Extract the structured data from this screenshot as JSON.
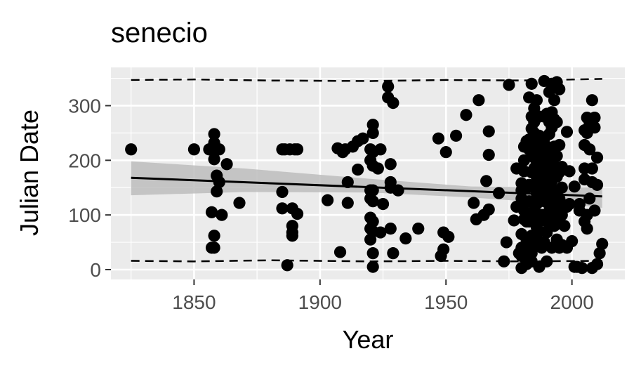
{
  "chart_data": {
    "type": "scatter",
    "title": "senecio",
    "xlabel": "Year",
    "ylabel": "Julian Date",
    "xlim": [
      1817,
      2021
    ],
    "ylim": [
      -18,
      370
    ],
    "x_ticks": [
      1850,
      1900,
      1950,
      2000
    ],
    "y_ticks": [
      0,
      100,
      200,
      300
    ],
    "x_tick_labels": [
      "1850",
      "1900",
      "1950",
      "2000"
    ],
    "y_tick_labels": [
      "0",
      "100",
      "200",
      "300"
    ],
    "grid": true,
    "legend": "none",
    "colors": {
      "panel": "#ebebeb",
      "grid": "#ffffff",
      "points": "#000000",
      "trend": "#000000",
      "band": "#bdbdbd"
    },
    "points": [
      [
        1825,
        220
      ],
      [
        1850,
        220
      ],
      [
        1856,
        220
      ],
      [
        1857,
        105
      ],
      [
        1857,
        40
      ],
      [
        1858,
        220
      ],
      [
        1858,
        248
      ],
      [
        1858,
        232
      ],
      [
        1858,
        202
      ],
      [
        1858,
        62
      ],
      [
        1858,
        40
      ],
      [
        1859,
        172
      ],
      [
        1859,
        143
      ],
      [
        1860,
        220
      ],
      [
        1860,
        160
      ],
      [
        1861,
        100
      ],
      [
        1863,
        193
      ],
      [
        1868,
        122
      ],
      [
        1885,
        220
      ],
      [
        1885,
        142
      ],
      [
        1885,
        112
      ],
      [
        1886,
        220
      ],
      [
        1887,
        8
      ],
      [
        1888,
        220
      ],
      [
        1889,
        112
      ],
      [
        1889,
        80
      ],
      [
        1889,
        68
      ],
      [
        1889,
        62
      ],
      [
        1890,
        220
      ],
      [
        1891,
        220
      ],
      [
        1891,
        102
      ],
      [
        1903,
        127
      ],
      [
        1907,
        222
      ],
      [
        1908,
        32
      ],
      [
        1909,
        215
      ],
      [
        1910,
        220
      ],
      [
        1911,
        160
      ],
      [
        1911,
        122
      ],
      [
        1913,
        225
      ],
      [
        1915,
        235
      ],
      [
        1915,
        183
      ],
      [
        1917,
        240
      ],
      [
        1920,
        220
      ],
      [
        1920,
        200
      ],
      [
        1920,
        145
      ],
      [
        1920,
        130
      ],
      [
        1920,
        95
      ],
      [
        1920,
        75
      ],
      [
        1920,
        55
      ],
      [
        1921,
        265
      ],
      [
        1921,
        250
      ],
      [
        1921,
        215
      ],
      [
        1921,
        190
      ],
      [
        1921,
        145
      ],
      [
        1921,
        125
      ],
      [
        1921,
        88
      ],
      [
        1921,
        70
      ],
      [
        1921,
        30
      ],
      [
        1921,
        5
      ],
      [
        1923,
        185
      ],
      [
        1924,
        220
      ],
      [
        1924,
        68
      ],
      [
        1925,
        120
      ],
      [
        1927,
        335
      ],
      [
        1927,
        315
      ],
      [
        1928,
        193
      ],
      [
        1928,
        160
      ],
      [
        1928,
        150
      ],
      [
        1928,
        75
      ],
      [
        1929,
        305
      ],
      [
        1929,
        30
      ],
      [
        1931,
        145
      ],
      [
        1934,
        57
      ],
      [
        1939,
        75
      ],
      [
        1947,
        240
      ],
      [
        1948,
        25
      ],
      [
        1949,
        68
      ],
      [
        1949,
        37
      ],
      [
        1950,
        215
      ],
      [
        1951,
        60
      ],
      [
        1954,
        245
      ],
      [
        1958,
        283
      ],
      [
        1961,
        122
      ],
      [
        1962,
        92
      ],
      [
        1963,
        310
      ],
      [
        1965,
        100
      ],
      [
        1966,
        162
      ],
      [
        1967,
        253
      ],
      [
        1967,
        210
      ],
      [
        1967,
        110
      ],
      [
        1971,
        140
      ],
      [
        1973,
        15
      ],
      [
        1974,
        50
      ],
      [
        1975,
        338
      ],
      [
        1977,
        90
      ],
      [
        1978,
        185
      ],
      [
        1978,
        115
      ],
      [
        1979,
        30
      ],
      [
        1980,
        158
      ],
      [
        1980,
        145
      ],
      [
        1980,
        130
      ],
      [
        1980,
        120
      ],
      [
        1980,
        65
      ],
      [
        1980,
        40
      ],
      [
        1980,
        25
      ],
      [
        1980,
        3
      ],
      [
        1981,
        225
      ],
      [
        1981,
        200
      ],
      [
        1981,
        180
      ],
      [
        1981,
        108
      ],
      [
        1981,
        92
      ],
      [
        1981,
        42
      ],
      [
        1982,
        235
      ],
      [
        1982,
        150
      ],
      [
        1982,
        88
      ],
      [
        1982,
        55
      ],
      [
        1982,
        10
      ],
      [
        1983,
        315
      ],
      [
        1983,
        238
      ],
      [
        1983,
        220
      ],
      [
        1983,
        155
      ],
      [
        1983,
        125
      ],
      [
        1983,
        88
      ],
      [
        1983,
        30
      ],
      [
        1984,
        340
      ],
      [
        1984,
        280
      ],
      [
        1984,
        258
      ],
      [
        1984,
        230
      ],
      [
        1984,
        215
      ],
      [
        1984,
        178
      ],
      [
        1984,
        100
      ],
      [
        1984,
        62
      ],
      [
        1984,
        30
      ],
      [
        1984,
        15
      ],
      [
        1985,
        295
      ],
      [
        1985,
        270
      ],
      [
        1985,
        250
      ],
      [
        1985,
        205
      ],
      [
        1985,
        185
      ],
      [
        1985,
        150
      ],
      [
        1985,
        108
      ],
      [
        1985,
        45
      ],
      [
        1986,
        310
      ],
      [
        1986,
        230
      ],
      [
        1986,
        215
      ],
      [
        1986,
        195
      ],
      [
        1986,
        170
      ],
      [
        1986,
        140
      ],
      [
        1986,
        120
      ],
      [
        1986,
        78
      ],
      [
        1986,
        55
      ],
      [
        1987,
        280
      ],
      [
        1987,
        245
      ],
      [
        1987,
        210
      ],
      [
        1987,
        160
      ],
      [
        1987,
        95
      ],
      [
        1987,
        70
      ],
      [
        1987,
        5
      ],
      [
        1988,
        230
      ],
      [
        1988,
        175
      ],
      [
        1988,
        140
      ],
      [
        1988,
        100
      ],
      [
        1988,
        40
      ],
      [
        1989,
        345
      ],
      [
        1989,
        280
      ],
      [
        1989,
        240
      ],
      [
        1989,
        190
      ],
      [
        1989,
        160
      ],
      [
        1989,
        125
      ],
      [
        1989,
        90
      ],
      [
        1989,
        50
      ],
      [
        1990,
        285
      ],
      [
        1990,
        225
      ],
      [
        1990,
        200
      ],
      [
        1990,
        170
      ],
      [
        1990,
        135
      ],
      [
        1990,
        102
      ],
      [
        1990,
        68
      ],
      [
        1990,
        15
      ],
      [
        1991,
        325
      ],
      [
        1991,
        270
      ],
      [
        1991,
        248
      ],
      [
        1991,
        212
      ],
      [
        1991,
        185
      ],
      [
        1991,
        150
      ],
      [
        1991,
        118
      ],
      [
        1991,
        80
      ],
      [
        1992,
        340
      ],
      [
        1992,
        288
      ],
      [
        1992,
        260
      ],
      [
        1992,
        220
      ],
      [
        1992,
        195
      ],
      [
        1992,
        162
      ],
      [
        1992,
        128
      ],
      [
        1992,
        92
      ],
      [
        1992,
        40
      ],
      [
        1993,
        310
      ],
      [
        1993,
        275
      ],
      [
        1993,
        225
      ],
      [
        1993,
        190
      ],
      [
        1993,
        145
      ],
      [
        1993,
        110
      ],
      [
        1993,
        80
      ],
      [
        1994,
        343
      ],
      [
        1994,
        270
      ],
      [
        1994,
        208
      ],
      [
        1994,
        170
      ],
      [
        1994,
        120
      ],
      [
        1994,
        95
      ],
      [
        1994,
        55
      ],
      [
        1995,
        330
      ],
      [
        1995,
        228
      ],
      [
        1995,
        178
      ],
      [
        1995,
        130
      ],
      [
        1995,
        105
      ],
      [
        1995,
        40
      ],
      [
        1996,
        188
      ],
      [
        1996,
        150
      ],
      [
        1996,
        100
      ],
      [
        1996,
        45
      ],
      [
        1997,
        118
      ],
      [
        1997,
        80
      ],
      [
        1998,
        252
      ],
      [
        1998,
        115
      ],
      [
        1998,
        40
      ],
      [
        1999,
        180
      ],
      [
        1999,
        120
      ],
      [
        2000,
        52
      ],
      [
        2001,
        152
      ],
      [
        2001,
        5
      ],
      [
        2002,
        5
      ],
      [
        2003,
        120
      ],
      [
        2003,
        108
      ],
      [
        2004,
        3
      ],
      [
        2005,
        255
      ],
      [
        2005,
        228
      ],
      [
        2005,
        185
      ],
      [
        2005,
        165
      ],
      [
        2005,
        88
      ],
      [
        2006,
        278
      ],
      [
        2006,
        250
      ],
      [
        2006,
        100
      ],
      [
        2006,
        75
      ],
      [
        2007,
        270
      ],
      [
        2007,
        220
      ],
      [
        2007,
        130
      ],
      [
        2008,
        310
      ],
      [
        2008,
        185
      ],
      [
        2008,
        160
      ],
      [
        2008,
        3
      ],
      [
        2009,
        278
      ],
      [
        2009,
        260
      ],
      [
        2009,
        108
      ],
      [
        2010,
        10
      ],
      [
        2010,
        205
      ],
      [
        2010,
        155
      ],
      [
        2011,
        30
      ],
      [
        2012,
        47
      ]
    ],
    "trend": {
      "x0": 1825,
      "y0": 168,
      "x1": 2012,
      "y1": 134
    },
    "band": {
      "x": [
        1825,
        1870,
        1920,
        1960,
        2000,
        2012
      ],
      "upper": [
        198,
        185,
        166,
        152,
        150,
        151
      ],
      "lower": [
        136,
        142,
        141,
        132,
        119,
        113
      ]
    },
    "upper_jitter": {
      "x": [
        1825,
        1850,
        1880,
        1920,
        1950,
        1980,
        2012
      ],
      "y": [
        347,
        348,
        346,
        345,
        347,
        346,
        349
      ]
    },
    "lower_jitter": {
      "x": [
        1825,
        1850,
        1880,
        1920,
        1950,
        1980,
        2012
      ],
      "y": [
        16,
        15,
        17,
        15,
        16,
        15,
        16
      ]
    }
  }
}
